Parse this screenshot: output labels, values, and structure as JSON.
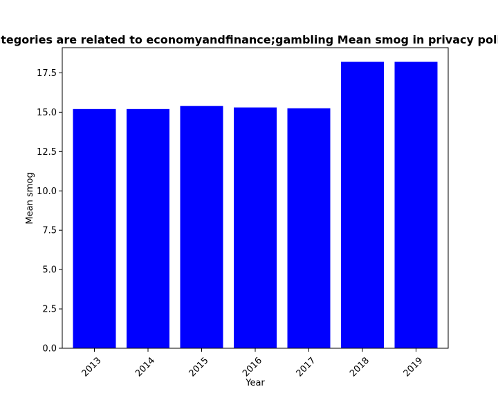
{
  "chart_data": {
    "type": "bar",
    "title": "Categories are related to economyandfinance;gambling Mean smog in privacy policies",
    "xlabel": "Year",
    "ylabel": "Mean smog",
    "categories": [
      "2013",
      "2014",
      "2015",
      "2016",
      "2017",
      "2018",
      "2019"
    ],
    "values": [
      15.2,
      15.2,
      15.4,
      15.3,
      15.25,
      18.2,
      18.2
    ],
    "ylim": [
      0,
      19.1
    ],
    "yticks": [
      0.0,
      2.5,
      5.0,
      7.5,
      10.0,
      12.5,
      15.0,
      17.5
    ],
    "ytick_labels": [
      "0.0",
      "2.5",
      "5.0",
      "7.5",
      "10.0",
      "12.5",
      "15.0",
      "17.5"
    ],
    "xtick_rotation": "45 degrees",
    "grid": false,
    "legend": "none",
    "bar_color": "#0000ff"
  }
}
